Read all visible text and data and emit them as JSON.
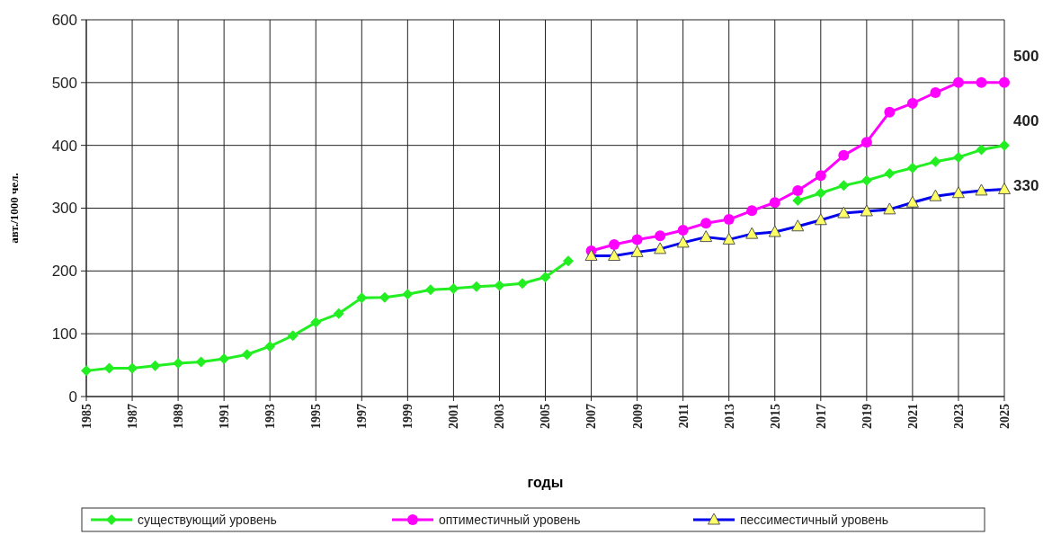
{
  "chart_data": {
    "type": "line",
    "xlabel": "годы",
    "ylabel": "авт./1000 чел.",
    "x": [
      1985,
      1986,
      1987,
      1988,
      1989,
      1990,
      1991,
      1992,
      1993,
      1994,
      1995,
      1996,
      1997,
      1998,
      1999,
      2000,
      2001,
      2002,
      2003,
      2004,
      2005,
      2006,
      2007,
      2008,
      2009,
      2010,
      2011,
      2012,
      2013,
      2014,
      2015,
      2016,
      2017,
      2018,
      2019,
      2020,
      2021,
      2022,
      2023,
      2024,
      2025
    ],
    "series": [
      {
        "name": "существующий уровень",
        "color": "#22ee22",
        "marker": "diamond",
        "values": [
          41,
          45,
          45,
          49,
          53,
          55,
          60,
          67,
          80,
          97,
          118,
          132,
          157,
          158,
          163,
          170,
          172,
          175,
          177,
          180,
          190,
          216,
          null,
          null,
          null,
          null,
          null,
          null,
          null,
          null,
          null,
          312,
          324,
          336,
          344,
          355,
          364,
          374,
          381,
          393,
          400
        ]
      },
      {
        "name": "оптиместичный уровень",
        "color": "#ff00ff",
        "marker": "circle",
        "values": [
          null,
          null,
          null,
          null,
          null,
          null,
          null,
          null,
          null,
          null,
          null,
          null,
          null,
          null,
          null,
          null,
          null,
          null,
          null,
          null,
          null,
          null,
          232,
          242,
          250,
          256,
          265,
          276,
          282,
          296,
          309,
          328,
          352,
          384,
          405,
          453,
          467,
          484,
          500,
          500,
          500
        ]
      },
      {
        "name": "пессиместичный уровень",
        "color": "#0000ee",
        "marker": "triangle",
        "values": [
          null,
          null,
          null,
          null,
          null,
          null,
          null,
          null,
          null,
          null,
          null,
          null,
          null,
          null,
          null,
          null,
          null,
          null,
          null,
          null,
          null,
          null,
          224,
          224,
          230,
          235,
          245,
          254,
          250,
          259,
          262,
          271,
          281,
          292,
          295,
          298,
          309,
          319,
          324,
          328,
          330
        ]
      }
    ],
    "xlim": [
      1985,
      2025
    ],
    "xticks": [
      1985,
      1987,
      1989,
      1991,
      1993,
      1995,
      1997,
      1999,
      2001,
      2003,
      2005,
      2007,
      2009,
      2011,
      2013,
      2015,
      2017,
      2019,
      2021,
      2023,
      2025
    ],
    "ylim": [
      0,
      600
    ],
    "yticks": [
      0,
      100,
      200,
      300,
      400,
      500,
      600
    ],
    "grid": true,
    "legend": "bottom",
    "annotations": [
      "500",
      "400",
      "330"
    ]
  }
}
